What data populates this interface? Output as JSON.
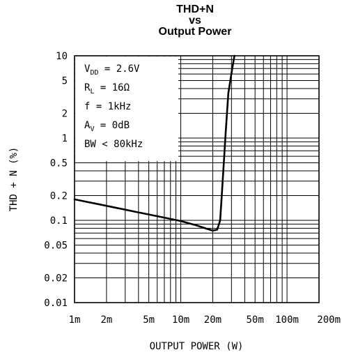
{
  "chart_data": {
    "type": "line",
    "title_lines": [
      "THD+N",
      "vs",
      "Output Power"
    ],
    "xlabel": "OUTPUT POWER (W)",
    "ylabel": "THD + N (%)",
    "x_scale": "log",
    "y_scale": "log",
    "xlim": [
      0.001,
      0.2
    ],
    "ylim": [
      0.01,
      10
    ],
    "x_ticks": [
      {
        "value": 0.001,
        "label": "1m"
      },
      {
        "value": 0.002,
        "label": "2m"
      },
      {
        "value": 0.005,
        "label": "5m"
      },
      {
        "value": 0.01,
        "label": "10m"
      },
      {
        "value": 0.02,
        "label": "20m"
      },
      {
        "value": 0.05,
        "label": "50m"
      },
      {
        "value": 0.1,
        "label": "100m"
      },
      {
        "value": 0.2,
        "label": "200m"
      }
    ],
    "y_ticks": [
      {
        "value": 10,
        "label": "10"
      },
      {
        "value": 5,
        "label": "5"
      },
      {
        "value": 2,
        "label": "2"
      },
      {
        "value": 1,
        "label": "1"
      },
      {
        "value": 0.5,
        "label": "0.5"
      },
      {
        "value": 0.2,
        "label": "0.2"
      },
      {
        "value": 0.1,
        "label": "0.1"
      },
      {
        "value": 0.05,
        "label": "0.05"
      },
      {
        "value": 0.02,
        "label": "0.02"
      },
      {
        "value": 0.01,
        "label": "0.01"
      }
    ],
    "grid": true,
    "conditions": [
      {
        "main": "V",
        "sub": "DD",
        "rest": " = 2.6V"
      },
      {
        "main": "R",
        "sub": "L",
        "rest": " = 16Ω"
      },
      {
        "main": "f = 1kHz",
        "sub": "",
        "rest": ""
      },
      {
        "main": "A",
        "sub": "V",
        "rest": " = 0dB"
      },
      {
        "main": "BW < 80kHz",
        "sub": "",
        "rest": ""
      }
    ],
    "series": [
      {
        "x": [
          0.001,
          0.002,
          0.004,
          0.007,
          0.01,
          0.014,
          0.017,
          0.02,
          0.022,
          0.0235,
          0.025,
          0.0265,
          0.028,
          0.0305,
          0.032
        ],
        "y": [
          0.18,
          0.15,
          0.125,
          0.108,
          0.098,
          0.087,
          0.08,
          0.075,
          0.077,
          0.1,
          0.35,
          1.2,
          3.5,
          7,
          10
        ]
      }
    ]
  }
}
